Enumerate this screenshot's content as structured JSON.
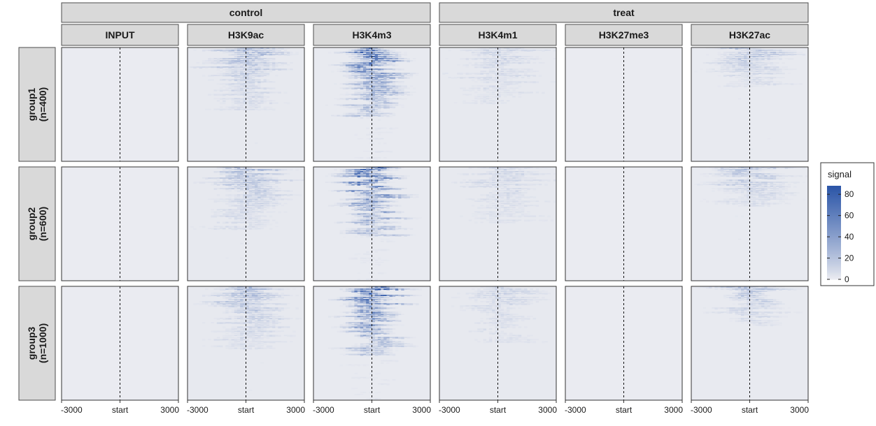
{
  "chart_data": {
    "type": "heatmap",
    "title": "",
    "xlabel": "",
    "ylabel": "",
    "column_groups": [
      {
        "label": "control",
        "marks": [
          "INPUT",
          "H3K9ac",
          "H3K4m3"
        ]
      },
      {
        "label": "treat",
        "marks": [
          "H3K4m1",
          "H3K27me3",
          "H3K27ac"
        ]
      }
    ],
    "rows": [
      {
        "label_line1": "group1",
        "label_line2": "(n=400)",
        "n": 400
      },
      {
        "label_line1": "group2",
        "label_line2": "(n=600)",
        "n": 600
      },
      {
        "label_line1": "group3",
        "label_line2": "(n=1000)",
        "n": 1000
      }
    ],
    "x_ticks": [
      {
        "value": -3000,
        "label": "-3000"
      },
      {
        "value": 0,
        "label": "start"
      },
      {
        "value": 3000,
        "label": "3000"
      }
    ],
    "x_range": [
      -3000,
      3000
    ],
    "reference_line_at": 0,
    "legend": {
      "title": "signal",
      "ticks": [
        {
          "value": 0,
          "label": "0"
        },
        {
          "value": 20,
          "label": "20"
        },
        {
          "value": 40,
          "label": "40"
        },
        {
          "value": 60,
          "label": "60"
        },
        {
          "value": 80,
          "label": "80"
        }
      ],
      "range": [
        0,
        88
      ],
      "placement": "right"
    },
    "colors": {
      "low": "#f0f0f3",
      "high": "#2c56a8",
      "strip_fill": "#d9d9d9",
      "strip_border": "#4d4d4d",
      "panel_border": "#333333"
    },
    "approx_max_signal_by_mark": {
      "INPUT": 3,
      "H3K9ac": 30,
      "H3K4m3": 85,
      "H3K4m1": 12,
      "H3K27me3": 4,
      "H3K27ac": 25
    }
  }
}
